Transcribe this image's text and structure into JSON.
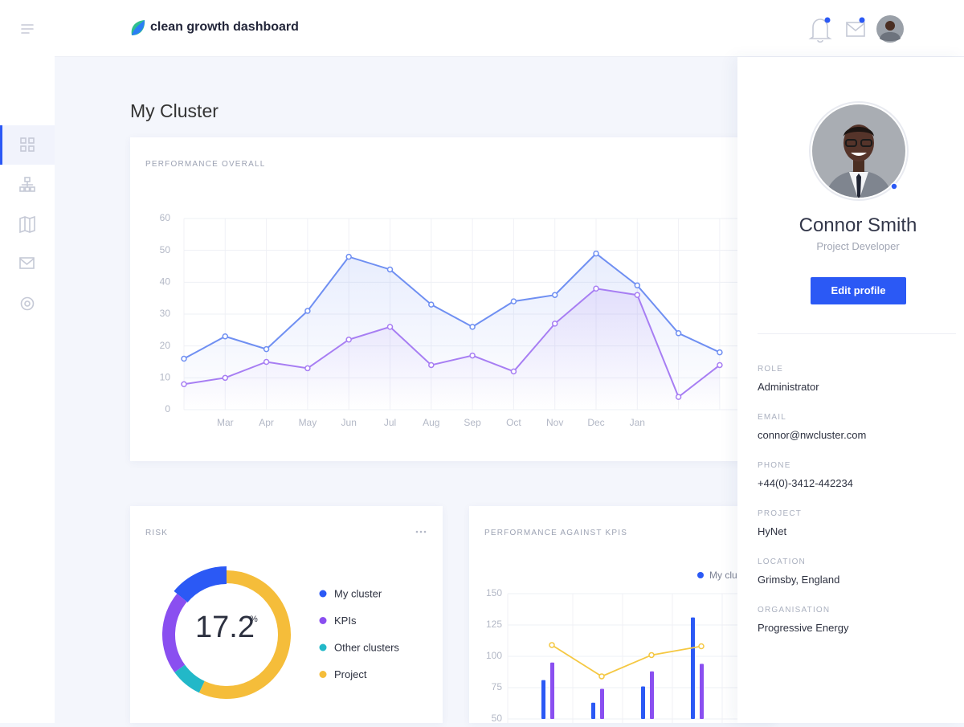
{
  "header": {
    "brand": "clean growth dashboard"
  },
  "page_title": "My Cluster",
  "chart_data": [
    {
      "type": "line",
      "title": "PERFORMANCE OVERALL",
      "categories": [
        null,
        "Mar",
        "Apr",
        "May",
        "Jun",
        "Jul",
        "Aug",
        "Sep",
        "Oct",
        "Nov",
        "Dec",
        "Jan",
        null,
        null
      ],
      "series": [
        {
          "color": "#6f8ff2",
          "values": [
            16,
            23,
            19,
            31,
            48,
            44,
            33,
            26,
            34,
            36,
            49,
            39,
            24,
            18
          ]
        },
        {
          "color": "#a77ef3",
          "values": [
            8,
            10,
            15,
            13,
            22,
            26,
            14,
            17,
            12,
            27,
            38,
            36,
            4,
            14
          ]
        }
      ],
      "ylim": [
        0,
        60
      ],
      "yticks": [
        0,
        10,
        20,
        30,
        40,
        50,
        60
      ],
      "grid": true
    },
    {
      "type": "donut",
      "title": "RISK",
      "categories": [
        "My cluster",
        "KPIs",
        "Other clusters",
        "Project"
      ],
      "values": [
        14,
        21,
        8,
        57
      ],
      "colors": [
        "#2b59f5",
        "#8a4ff0",
        "#22b8c8",
        "#f5bd3a"
      ],
      "center_value": 17.2,
      "center_unit": "%"
    },
    {
      "type": "bar",
      "title": "PERFORMANCE AGAINST KPIS",
      "series": [
        {
          "name": "My cluster",
          "color": "#2b59f5",
          "mark": "bar",
          "values": [
            81,
            63,
            76,
            131
          ]
        },
        {
          "color": "#8a4ff0",
          "mark": "bar",
          "values": [
            95,
            74,
            88,
            94
          ]
        },
        {
          "color": "#f5c842",
          "mark": "line",
          "values": [
            109,
            84,
            101,
            108
          ]
        }
      ],
      "ylim": [
        50,
        150
      ],
      "yticks": [
        50,
        75,
        100,
        125,
        150
      ],
      "grid": true,
      "legend": "top-right"
    }
  ],
  "profile": {
    "name": "Connor Smith",
    "job_title": "Project Developer",
    "button": "Edit profile",
    "fields": [
      {
        "label": "ROLE",
        "value": "Administrator"
      },
      {
        "label": "EMAIL",
        "value": "connor@nwcluster.com"
      },
      {
        "label": "PHONE",
        "value": "+44(0)-3412-442234"
      },
      {
        "label": "PROJECT",
        "value": "HyNet"
      },
      {
        "label": "LOCATION",
        "value": "Grimsby, England"
      },
      {
        "label": "ORGANISATION",
        "value": "Progressive Energy"
      }
    ]
  }
}
